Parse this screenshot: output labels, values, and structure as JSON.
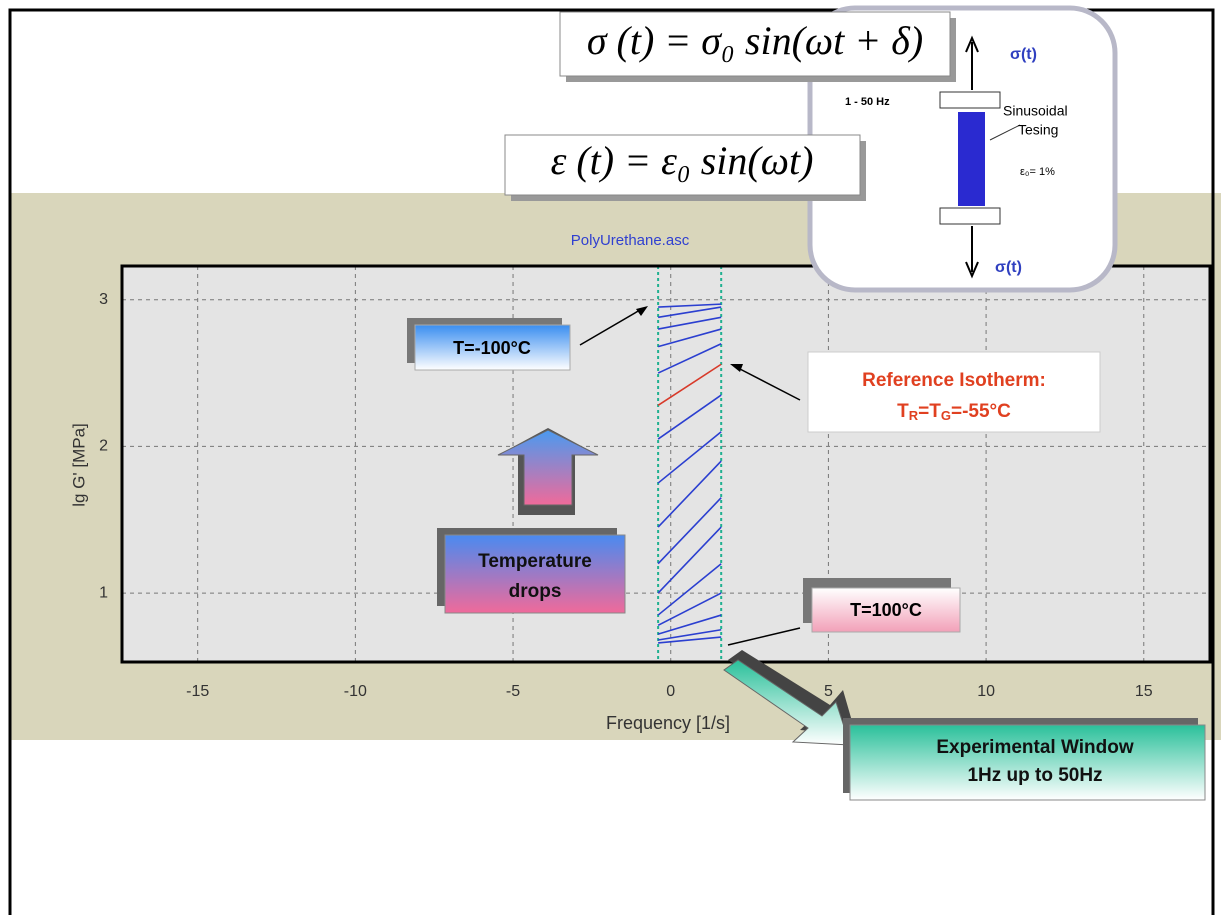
{
  "chart_data": {
    "type": "line",
    "title": "PolyUrethane.asc",
    "x_label": "Frequency  [1/s]",
    "y_label": "lg G'  [MPa]",
    "xlim": [
      -17.4,
      17.1
    ],
    "ylim": [
      0.53,
      3.23
    ],
    "xticks": [
      -15,
      -10,
      -5,
      0,
      5,
      10,
      15
    ],
    "yticks": [
      1,
      2,
      3
    ],
    "grid": true,
    "window_x": [
      -0.4,
      1.6
    ],
    "window_color": "#20b090",
    "x": [
      -0.4,
      1.6
    ],
    "series": [
      {
        "color": "#2b3fd0",
        "values": [
          2.95,
          2.97
        ]
      },
      {
        "color": "#2b3fd0",
        "values": [
          2.88,
          2.95
        ]
      },
      {
        "color": "#2b3fd0",
        "values": [
          2.8,
          2.88
        ]
      },
      {
        "color": "#2b3fd0",
        "values": [
          2.68,
          2.8
        ]
      },
      {
        "color": "#2b3fd0",
        "values": [
          2.5,
          2.7
        ]
      },
      {
        "color": "#d83a2a",
        "values": [
          2.28,
          2.56
        ]
      },
      {
        "color": "#2b3fd0",
        "values": [
          2.05,
          2.35
        ]
      },
      {
        "color": "#2b3fd0",
        "values": [
          1.75,
          2.1
        ]
      },
      {
        "color": "#2b3fd0",
        "values": [
          1.45,
          1.9
        ]
      },
      {
        "color": "#2b3fd0",
        "values": [
          1.2,
          1.65
        ]
      },
      {
        "color": "#2b3fd0",
        "values": [
          1.0,
          1.45
        ]
      },
      {
        "color": "#2b3fd0",
        "values": [
          0.85,
          1.2
        ]
      },
      {
        "color": "#2b3fd0",
        "values": [
          0.78,
          1.0
        ]
      },
      {
        "color": "#2b3fd0",
        "values": [
          0.72,
          0.85
        ]
      },
      {
        "color": "#2b3fd0",
        "values": [
          0.68,
          0.75
        ]
      },
      {
        "color": "#2b3fd0",
        "values": [
          0.66,
          0.7
        ]
      }
    ]
  },
  "slide": {
    "equation_stress": "σ (t) = σ₀ sin(ωt + δ)",
    "equation_strain": "ε (t) = ε₀ sin(ωt)",
    "test_sigma_top": "σ(t)",
    "test_sigma_bottom": "σ(t)",
    "test_frequency": "1 - 50 Hz",
    "test_label": [
      "Sinusoidal",
      "Tesing"
    ],
    "test_strain": "ε₀= 1%",
    "label_cold": "T=-100°C",
    "label_hot": "T=100°C",
    "reference": {
      "line1": "Reference Isotherm:",
      "line2": [
        "T",
        "R",
        "=T",
        "G",
        "=-55°C"
      ]
    },
    "temperature": [
      "Temperature",
      "drops"
    ],
    "window": [
      "Experimental Window",
      "1Hz up to 50Hz"
    ]
  }
}
